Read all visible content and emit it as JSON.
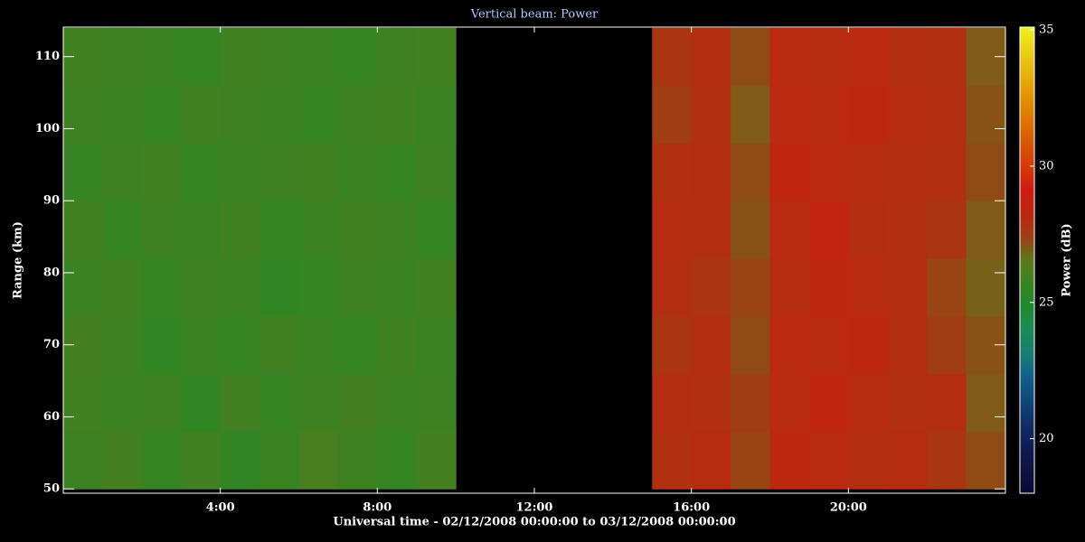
{
  "chart_data": {
    "type": "heatmap",
    "title": "Vertical beam: Power",
    "x_label": "Universal time - 02/12/2008 00:00:00 to 03/12/2008 00:00:00",
    "y_label": "Range (km)",
    "colorbar_label": "Power (dB)",
    "x_edges": [
      0,
      1,
      2,
      3,
      4,
      5,
      6,
      7,
      8,
      9,
      10,
      11,
      12,
      13,
      14,
      15,
      16,
      17,
      18,
      19,
      20,
      21,
      22,
      23,
      24
    ],
    "y_edges": [
      50,
      58,
      66,
      74,
      82,
      90,
      98,
      106,
      114
    ],
    "values": [
      [
        25.8,
        26.0,
        25.6,
        25.9,
        25.5,
        25.7,
        26.1,
        25.8,
        25.6,
        26.0,
        null,
        null,
        null,
        null,
        null,
        27.6,
        27.9,
        27.3,
        28.2,
        28.0,
        27.7,
        27.9,
        27.5,
        27.2
      ],
      [
        25.9,
        25.7,
        25.8,
        25.5,
        25.9,
        25.6,
        25.8,
        26.0,
        25.7,
        25.8,
        null,
        null,
        null,
        null,
        null,
        27.8,
        27.6,
        27.4,
        28.0,
        28.3,
        27.9,
        27.6,
        27.8,
        27.0
      ],
      [
        26.0,
        25.8,
        25.5,
        25.7,
        25.6,
        25.9,
        25.7,
        25.6,
        25.9,
        25.7,
        null,
        null,
        null,
        null,
        null,
        27.5,
        27.8,
        27.2,
        28.1,
        28.0,
        28.2,
        27.7,
        27.4,
        27.1
      ],
      [
        25.7,
        25.9,
        25.6,
        25.8,
        25.7,
        25.5,
        25.6,
        25.8,
        25.7,
        25.9,
        null,
        null,
        null,
        null,
        null,
        27.7,
        27.5,
        27.3,
        27.9,
        28.2,
        28.0,
        27.8,
        27.3,
        26.9
      ],
      [
        25.9,
        25.6,
        25.8,
        25.7,
        25.9,
        25.6,
        25.7,
        25.9,
        25.8,
        25.6,
        null,
        null,
        null,
        null,
        null,
        27.9,
        27.7,
        27.1,
        28.0,
        28.4,
        27.8,
        27.6,
        27.5,
        27.0
      ],
      [
        25.6,
        25.8,
        25.9,
        25.6,
        25.7,
        25.8,
        25.9,
        25.7,
        25.6,
        25.8,
        null,
        null,
        null,
        null,
        null,
        27.6,
        27.8,
        27.2,
        28.3,
        28.1,
        27.9,
        27.7,
        27.6,
        27.2
      ],
      [
        25.8,
        25.7,
        25.6,
        25.9,
        25.8,
        25.7,
        25.6,
        25.8,
        25.9,
        25.7,
        null,
        null,
        null,
        null,
        null,
        27.4,
        27.6,
        27.0,
        28.1,
        28.0,
        28.2,
        27.9,
        27.7,
        27.1
      ],
      [
        25.9,
        25.8,
        25.7,
        25.6,
        25.9,
        25.8,
        25.7,
        25.6,
        25.8,
        25.9,
        null,
        null,
        null,
        null,
        null,
        27.5,
        27.7,
        27.2,
        28.0,
        27.9,
        28.1,
        27.8,
        27.6,
        27.0
      ]
    ],
    "xlim": [
      0,
      24
    ],
    "ylim": [
      49.4,
      114.1
    ],
    "clim": [
      18,
      35.1
    ],
    "xticks": [
      {
        "value": 4,
        "label": "4:00"
      },
      {
        "value": 8,
        "label": "8:00"
      },
      {
        "value": 12,
        "label": "12:00"
      },
      {
        "value": 16,
        "label": "16:00"
      },
      {
        "value": 20,
        "label": "20:00"
      }
    ],
    "yticks": [
      50,
      60,
      70,
      80,
      90,
      100,
      110
    ],
    "cticks": [
      20,
      25,
      30,
      35
    ]
  }
}
